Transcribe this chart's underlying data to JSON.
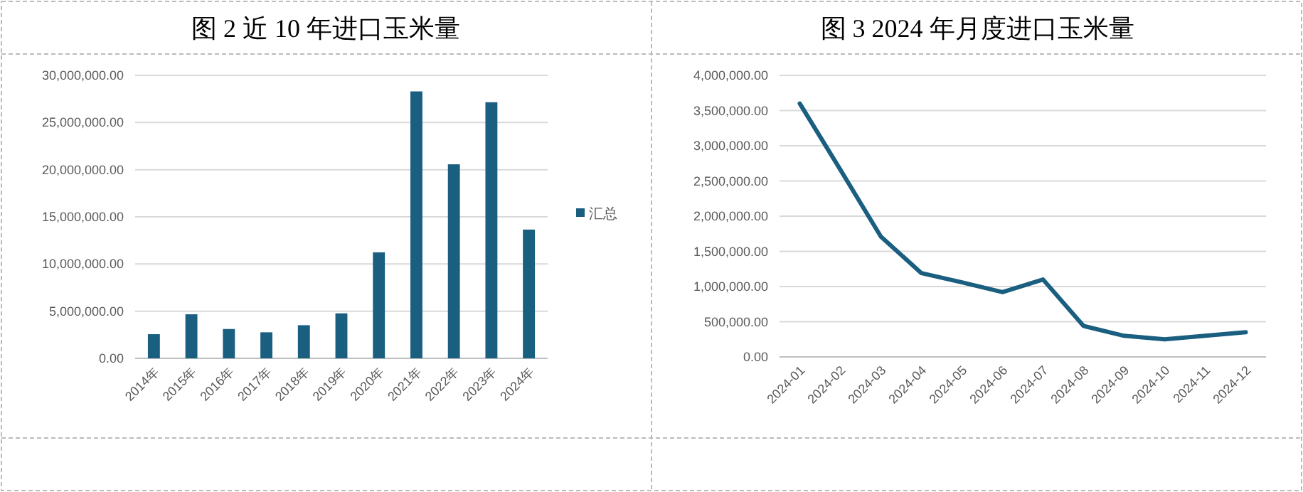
{
  "chart_data": [
    {
      "type": "bar",
      "title": "图 2  近 10 年进口玉米量",
      "categories": [
        "2014年",
        "2015年",
        "2016年",
        "2017年",
        "2018年",
        "2019年",
        "2020年",
        "2021年",
        "2022年",
        "2023年",
        "2024年"
      ],
      "series": [
        {
          "name": "汇总",
          "color": "#1a5e80",
          "values": [
            2560000,
            4670000,
            3110000,
            2760000,
            3510000,
            4770000,
            11240000,
            28300000,
            20570000,
            27150000,
            13650000
          ]
        }
      ],
      "ylim": [
        0,
        30000000
      ],
      "yticks": [
        {
          "value": 0,
          "label": "0.00"
        },
        {
          "value": 5000000,
          "label": "5,000,000.00"
        },
        {
          "value": 10000000,
          "label": "10,000,000.00"
        },
        {
          "value": 15000000,
          "label": "15,000,000.00"
        },
        {
          "value": 20000000,
          "label": "20,000,000.00"
        },
        {
          "value": 25000000,
          "label": "25,000,000.00"
        },
        {
          "value": 30000000,
          "label": "30,000,000.00"
        }
      ],
      "grid": "y",
      "legend": "right"
    },
    {
      "type": "line",
      "title": "图 3   2024 年月度进口玉米量",
      "categories": [
        "2024-01",
        "2024-02",
        "2024-03",
        "2024-04",
        "2024-05",
        "2024-06",
        "2024-07",
        "2024-08",
        "2024-09",
        "2024-10",
        "2024-11",
        "2024-12"
      ],
      "series": [
        {
          "color": "#1a5e80",
          "values": [
            3600000,
            2660000,
            1710000,
            1190000,
            1060000,
            920000,
            1100000,
            440000,
            300000,
            250000,
            300000,
            350000
          ]
        }
      ],
      "ylim": [
        0,
        4000000
      ],
      "yticks": [
        {
          "value": 0,
          "label": "0.00"
        },
        {
          "value": 500000,
          "label": "500,000.00"
        },
        {
          "value": 1000000,
          "label": "1,000,000.00"
        },
        {
          "value": 1500000,
          "label": "1,500,000.00"
        },
        {
          "value": 2000000,
          "label": "2,000,000.00"
        },
        {
          "value": 2500000,
          "label": "2,500,000.00"
        },
        {
          "value": 3000000,
          "label": "3,000,000.00"
        },
        {
          "value": 3500000,
          "label": "3,500,000.00"
        },
        {
          "value": 4000000,
          "label": "4,000,000.00"
        }
      ],
      "grid": "y",
      "legend": false,
      "marker": "none"
    }
  ]
}
